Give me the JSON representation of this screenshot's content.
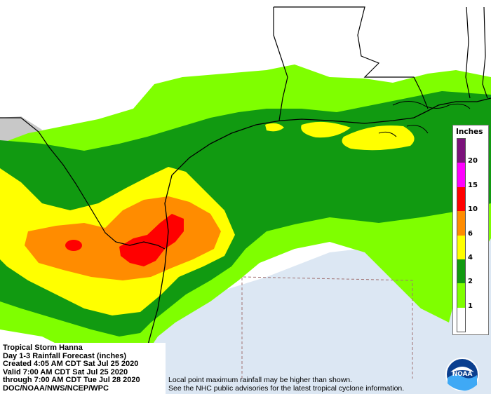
{
  "info": {
    "line1": "Tropical Storm Hanna",
    "line2": "Day 1-3 Rainfall Forecast (inches)",
    "line3": "Created 4:05 AM CDT Sat Jul 25 2020",
    "line4": "Valid 7:00 AM CDT Sat Jul 25 2020",
    "line5": "through 7:00 AM CDT Tue Jul 28 2020",
    "line6": "DOC/NOAA/NWS/NCEP/WPC"
  },
  "disclaimer": {
    "line1": "Local point maximum rainfall may be higher than shown.",
    "line2": "See the NHC public advisories for the latest tropical cyclone information."
  },
  "legend": {
    "title": "Inches",
    "ticks": [
      "20",
      "15",
      "10",
      "6",
      "4",
      "2",
      "1"
    ],
    "colors": [
      "#7b127b",
      "#ff00ff",
      "#ff0000",
      "#ff8c00",
      "#ffff00",
      "#119a11",
      "#7fff00",
      "#ffffff"
    ]
  },
  "logo": {
    "text": "NOAA"
  }
}
